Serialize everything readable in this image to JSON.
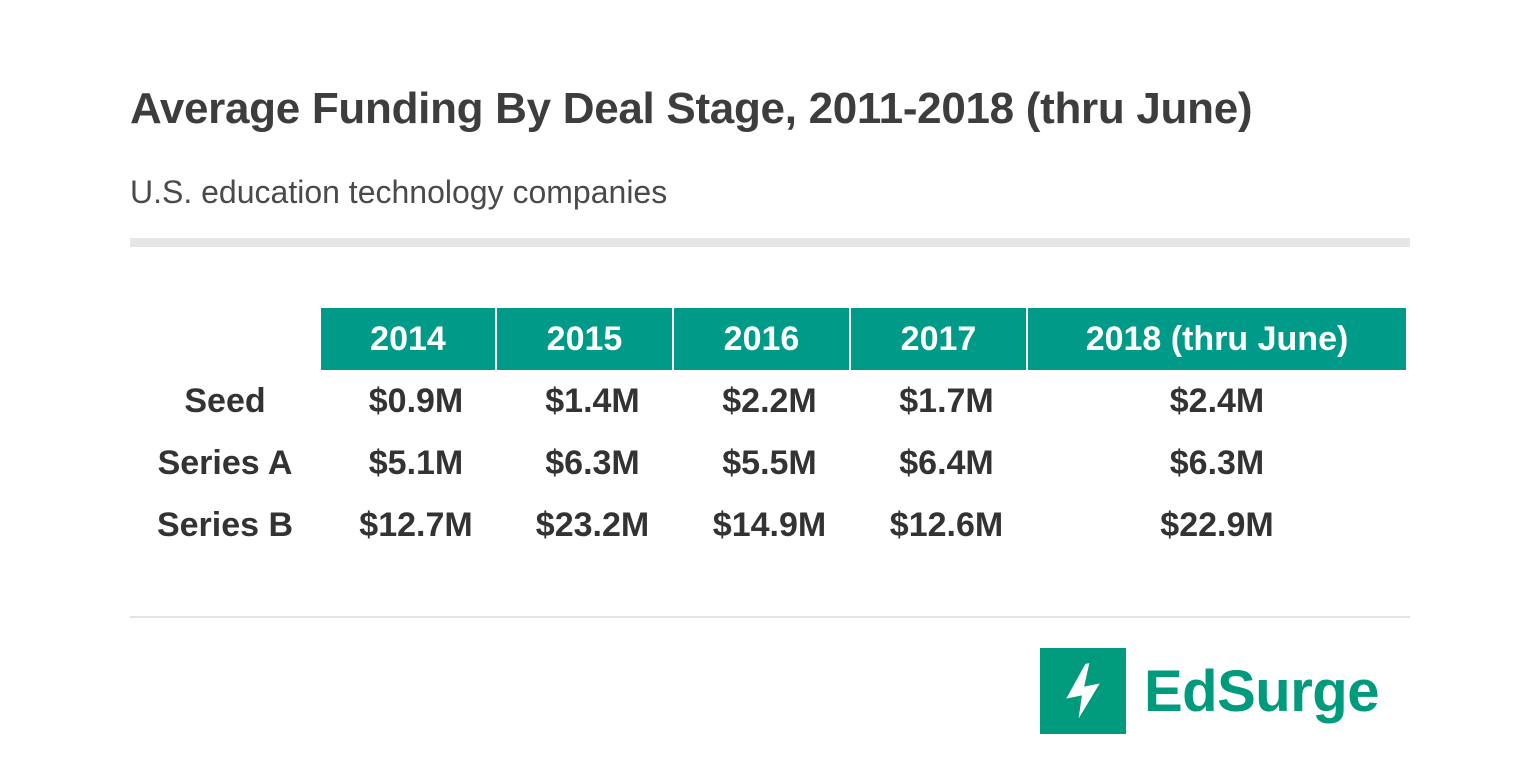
{
  "chart_data": {
    "type": "table",
    "title": "Average Funding By Deal Stage, 2011-2018 (thru June)",
    "subtitle": "U.S. education technology companies",
    "columns": [
      "2014",
      "2015",
      "2016",
      "2017",
      "2018 (thru June)"
    ],
    "rows": [
      {
        "label": "Seed",
        "values": [
          "$0.9M",
          "$1.4M",
          "$2.2M",
          "$1.7M",
          "$2.4M"
        ]
      },
      {
        "label": "Series A",
        "values": [
          "$5.1M",
          "$6.3M",
          "$5.5M",
          "$6.4M",
          "$6.3M"
        ]
      },
      {
        "label": "Series B",
        "values": [
          "$12.7M",
          "$23.2M",
          "$14.9M",
          "$12.6M",
          "$22.9M"
        ]
      }
    ]
  },
  "colors": {
    "header": "#009a88",
    "logo": "#009a7c",
    "text": "#333333"
  },
  "logo": {
    "text": "EdSurge",
    "icon": "lightning-bolt-icon"
  }
}
